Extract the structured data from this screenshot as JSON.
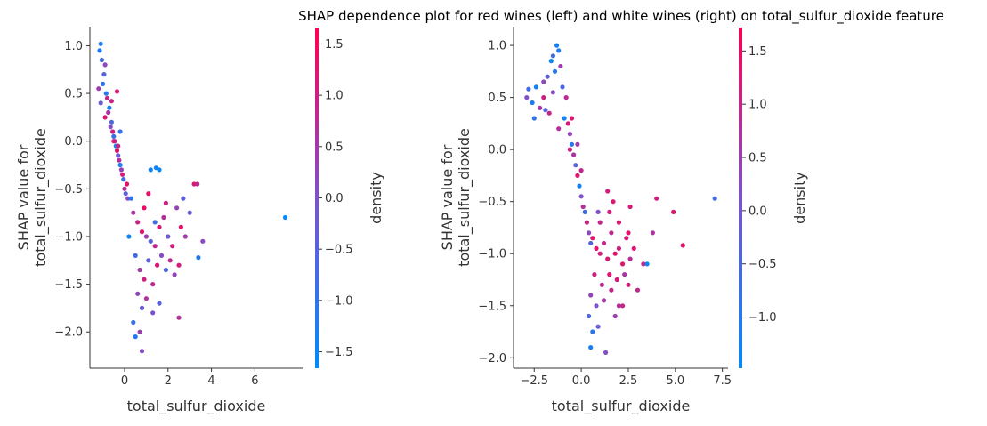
{
  "title": "SHAP dependence plot for red wines (left) and white wines (right) on total_sulfur_dioxide feature",
  "colors": {
    "low": "#008bfb",
    "mid": "#7c52cc",
    "high": "#ff0052"
  },
  "chart_data": [
    {
      "type": "scatter",
      "xlabel": "total_sulfur_dioxide",
      "ylabel": "SHAP value for\ntotal_sulfur_dioxide",
      "xlim": [
        -1.6,
        8.2
      ],
      "ylim": [
        -2.38,
        1.2
      ],
      "xticks": [
        0,
        2,
        4,
        6
      ],
      "yticks": [
        1.0,
        0.5,
        0.0,
        -0.5,
        -1.0,
        -1.5,
        -2.0
      ],
      "colorbar": {
        "label": "density",
        "lim": [
          -1.66,
          1.66
        ],
        "ticks": [
          1.5,
          1.0,
          0.5,
          0.0,
          -0.5,
          -1.0,
          -1.5
        ]
      },
      "points": [
        [
          -1.15,
          0.95,
          -1.2
        ],
        [
          -1.1,
          1.02,
          -1.3
        ],
        [
          -1.05,
          0.85,
          -0.8
        ],
        [
          -0.95,
          0.7,
          -0.5
        ],
        [
          -0.9,
          0.8,
          0.2
        ],
        [
          -1.0,
          0.6,
          -1.0
        ],
        [
          -1.2,
          0.55,
          0.4
        ],
        [
          -0.85,
          0.5,
          -1.1
        ],
        [
          -0.8,
          0.45,
          0.9
        ],
        [
          -1.1,
          0.4,
          -0.3
        ],
        [
          -0.7,
          0.35,
          -1.4
        ],
        [
          -0.75,
          0.3,
          0.6
        ],
        [
          -0.9,
          0.25,
          1.2
        ],
        [
          -0.6,
          0.2,
          -0.6
        ],
        [
          -0.65,
          0.15,
          0.1
        ],
        [
          -0.55,
          0.1,
          1.0
        ],
        [
          -0.5,
          0.05,
          -0.9
        ],
        [
          -0.45,
          0.0,
          0.5
        ],
        [
          -0.4,
          -0.05,
          -1.2
        ],
        [
          -0.35,
          -0.1,
          1.3
        ],
        [
          -0.3,
          -0.15,
          -0.2
        ],
        [
          -0.25,
          -0.2,
          0.7
        ],
        [
          -0.2,
          -0.25,
          -1.3
        ],
        [
          -0.15,
          -0.3,
          0.3
        ],
        [
          -0.1,
          -0.35,
          1.1
        ],
        [
          -0.05,
          -0.4,
          -0.7
        ],
        [
          0.0,
          -0.5,
          0.8
        ],
        [
          0.05,
          -0.55,
          -0.4
        ],
        [
          0.1,
          -0.45,
          1.4
        ],
        [
          0.15,
          -0.6,
          0.2
        ],
        [
          -0.35,
          0.52,
          1.2
        ],
        [
          -0.6,
          0.42,
          1.0
        ],
        [
          -0.5,
          0.0,
          1.2
        ],
        [
          -0.3,
          -0.05,
          0.9
        ],
        [
          -0.2,
          0.1,
          -1.0
        ],
        [
          1.2,
          -0.3,
          -1.5
        ],
        [
          1.45,
          -0.28,
          -1.4
        ],
        [
          1.6,
          -0.3,
          -1.6
        ],
        [
          7.4,
          -0.8,
          -1.6
        ],
        [
          3.4,
          -1.22,
          -1.2
        ],
        [
          0.4,
          -0.75,
          0.6
        ],
        [
          0.6,
          -0.85,
          1.0
        ],
        [
          0.8,
          -0.95,
          1.3
        ],
        [
          1.0,
          -1.0,
          0.4
        ],
        [
          1.2,
          -1.05,
          -0.5
        ],
        [
          1.4,
          -1.1,
          0.9
        ],
        [
          1.6,
          -0.9,
          1.2
        ],
        [
          1.8,
          -0.8,
          0.7
        ],
        [
          2.0,
          -1.0,
          -0.2
        ],
        [
          2.2,
          -1.1,
          1.1
        ],
        [
          2.4,
          -0.7,
          0.3
        ],
        [
          2.6,
          -0.9,
          1.3
        ],
        [
          2.8,
          -1.0,
          0.5
        ],
        [
          3.0,
          -0.75,
          -0.3
        ],
        [
          3.2,
          -0.45,
          1.2
        ],
        [
          3.35,
          -0.45,
          0.8
        ],
        [
          3.6,
          -1.05,
          0.2
        ],
        [
          0.5,
          -1.2,
          -0.8
        ],
        [
          0.7,
          -1.35,
          0.5
        ],
        [
          0.9,
          -1.45,
          1.0
        ],
        [
          1.1,
          -1.25,
          -0.4
        ],
        [
          1.3,
          -1.5,
          0.8
        ],
        [
          1.5,
          -1.3,
          1.2
        ],
        [
          1.7,
          -1.2,
          0.1
        ],
        [
          1.9,
          -1.35,
          -0.6
        ],
        [
          2.1,
          -1.25,
          0.9
        ],
        [
          2.3,
          -1.4,
          0.3
        ],
        [
          2.5,
          -1.3,
          1.1
        ],
        [
          0.6,
          -1.6,
          0.2
        ],
        [
          0.8,
          -1.75,
          -0.3
        ],
        [
          1.0,
          -1.65,
          0.6
        ],
        [
          1.3,
          -1.8,
          0.0
        ],
        [
          1.6,
          -1.7,
          -0.5
        ],
        [
          0.4,
          -1.9,
          -0.9
        ],
        [
          0.7,
          -2.0,
          0.4
        ],
        [
          0.8,
          -2.2,
          0.1
        ],
        [
          0.5,
          -2.05,
          -1.2
        ],
        [
          2.5,
          -1.85,
          0.7
        ],
        [
          1.4,
          -0.85,
          -0.8
        ],
        [
          0.3,
          -0.6,
          -1.1
        ],
        [
          0.9,
          -0.7,
          1.4
        ],
        [
          1.9,
          -0.65,
          1.0
        ],
        [
          2.7,
          -0.6,
          -0.4
        ],
        [
          0.2,
          -1.0,
          -1.5
        ],
        [
          1.1,
          -0.55,
          1.3
        ]
      ]
    },
    {
      "type": "scatter",
      "xlabel": "total_sulfur_dioxide",
      "ylabel": "SHAP value for\ntotal_sulfur_dioxide",
      "xlim": [
        -3.6,
        7.8
      ],
      "ylim": [
        -2.1,
        1.18
      ],
      "xticks": [
        -2.5,
        0.0,
        2.5,
        5.0,
        7.5
      ],
      "yticks": [
        1.0,
        0.5,
        0.0,
        -0.5,
        -1.0,
        -1.5,
        -2.0
      ],
      "colorbar": {
        "label": "density",
        "lim": [
          -1.48,
          1.72
        ],
        "ticks": [
          1.5,
          1.0,
          0.5,
          0.0,
          -0.5,
          -1.0
        ]
      },
      "points": [
        [
          -1.3,
          1.0,
          -1.2
        ],
        [
          -1.2,
          0.95,
          -1.0
        ],
        [
          -1.5,
          0.9,
          -0.6
        ],
        [
          -1.6,
          0.85,
          -1.3
        ],
        [
          -1.1,
          0.8,
          0.5
        ],
        [
          -1.4,
          0.75,
          -0.9
        ],
        [
          -1.8,
          0.7,
          -0.2
        ],
        [
          -2.0,
          0.65,
          0.3
        ],
        [
          -2.4,
          0.6,
          -1.2
        ],
        [
          -2.8,
          0.58,
          -0.6
        ],
        [
          -2.9,
          0.5,
          0.2
        ],
        [
          -2.6,
          0.45,
          -1.1
        ],
        [
          -2.2,
          0.4,
          0.6
        ],
        [
          -1.9,
          0.38,
          -0.4
        ],
        [
          -1.7,
          0.35,
          1.0
        ],
        [
          -2.5,
          0.3,
          -0.8
        ],
        [
          -2.0,
          0.5,
          1.1
        ],
        [
          -1.5,
          0.55,
          0.2
        ],
        [
          -1.0,
          0.6,
          -0.5
        ],
        [
          -0.8,
          0.5,
          0.9
        ],
        [
          -0.9,
          0.3,
          -1.3
        ],
        [
          -0.7,
          0.25,
          1.2
        ],
        [
          -0.6,
          0.15,
          0.4
        ],
        [
          -0.5,
          0.05,
          -1.0
        ],
        [
          -0.4,
          -0.05,
          0.7
        ],
        [
          -0.3,
          -0.15,
          -0.3
        ],
        [
          -0.2,
          -0.25,
          1.3
        ],
        [
          -0.1,
          -0.35,
          -1.2
        ],
        [
          0.0,
          -0.45,
          0.1
        ],
        [
          0.1,
          -0.55,
          0.8
        ],
        [
          0.2,
          -0.6,
          -0.7
        ],
        [
          0.3,
          -0.7,
          1.1
        ],
        [
          0.4,
          -0.8,
          0.3
        ],
        [
          0.5,
          -0.9,
          -0.4
        ],
        [
          -0.5,
          0.3,
          1.3
        ],
        [
          -0.6,
          0.0,
          1.2
        ],
        [
          -1.2,
          0.2,
          0.8
        ],
        [
          0.0,
          -0.2,
          1.0
        ],
        [
          -0.2,
          0.05,
          0.6
        ],
        [
          0.6,
          -0.85,
          1.3
        ],
        [
          0.8,
          -0.95,
          1.4
        ],
        [
          1.0,
          -1.0,
          1.2
        ],
        [
          1.2,
          -0.9,
          1.0
        ],
        [
          1.4,
          -1.05,
          1.3
        ],
        [
          1.6,
          -0.8,
          0.9
        ],
        [
          1.8,
          -1.0,
          1.4
        ],
        [
          2.0,
          -0.95,
          1.1
        ],
        [
          2.2,
          -1.1,
          1.3
        ],
        [
          2.4,
          -0.85,
          1.2
        ],
        [
          2.6,
          -1.05,
          0.8
        ],
        [
          1.0,
          -0.7,
          1.0
        ],
        [
          1.5,
          -0.6,
          1.2
        ],
        [
          2.0,
          -0.7,
          1.3
        ],
        [
          2.5,
          -0.8,
          1.4
        ],
        [
          0.7,
          -1.2,
          1.1
        ],
        [
          1.1,
          -1.3,
          0.9
        ],
        [
          1.5,
          -1.2,
          1.3
        ],
        [
          1.9,
          -1.25,
          1.2
        ],
        [
          2.3,
          -1.2,
          0.7
        ],
        [
          0.5,
          -1.4,
          0.4
        ],
        [
          0.8,
          -1.5,
          0.1
        ],
        [
          1.2,
          -1.45,
          0.6
        ],
        [
          1.6,
          -1.35,
          1.0
        ],
        [
          2.0,
          -1.5,
          0.8
        ],
        [
          2.5,
          -1.3,
          1.2
        ],
        [
          0.4,
          -1.6,
          -0.5
        ],
        [
          0.6,
          -1.75,
          -0.9
        ],
        [
          0.9,
          -1.7,
          -0.2
        ],
        [
          0.5,
          -1.9,
          -1.1
        ],
        [
          1.3,
          -1.95,
          0.2
        ],
        [
          1.8,
          -1.6,
          0.5
        ],
        [
          2.2,
          -1.5,
          1.0
        ],
        [
          1.4,
          -0.4,
          1.2
        ],
        [
          2.8,
          -0.95,
          1.3
        ],
        [
          3.3,
          -1.1,
          1.0
        ],
        [
          3.5,
          -1.1,
          -1.3
        ],
        [
          4.0,
          -0.47,
          1.1
        ],
        [
          4.9,
          -0.6,
          1.3
        ],
        [
          5.4,
          -0.92,
          1.4
        ],
        [
          7.1,
          -0.47,
          -0.6
        ],
        [
          3.8,
          -0.8,
          0.7
        ],
        [
          2.6,
          -0.55,
          1.2
        ],
        [
          1.7,
          -0.5,
          1.3
        ],
        [
          0.9,
          -0.6,
          0.2
        ],
        [
          3.0,
          -1.35,
          0.9
        ]
      ]
    }
  ]
}
